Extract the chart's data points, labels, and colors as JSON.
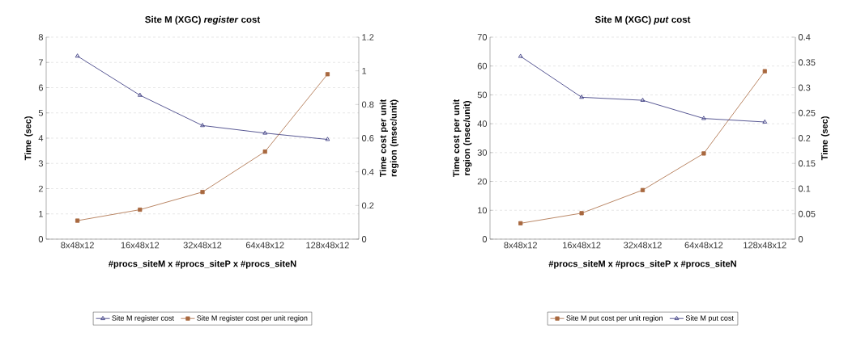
{
  "chart_data": [
    {
      "type": "line",
      "title": "Site M (XGC) *register* cost",
      "categories": [
        "8x48x12",
        "16x48x12",
        "32x48x12",
        "64x48x12",
        "128x48x12"
      ],
      "xlabel": "#procs_siteM x #procs_siteP x #procs_siteN",
      "ylabel": "Time (sec)",
      "y2label": "Time cost per unit region (msec/unit)",
      "ylim": [
        0,
        8
      ],
      "yticks": [
        0,
        1,
        2,
        3,
        4,
        5,
        6,
        7,
        8
      ],
      "y2lim": [
        0,
        1.2
      ],
      "y2ticks": [
        0,
        0.2,
        0.4,
        0.6,
        0.8,
        1,
        1.2
      ],
      "grid": "y",
      "legend": "bottom",
      "line_style": "solid",
      "series": [
        {
          "name": "Site M register cost",
          "color": "#2e2e78",
          "marker": "triangle",
          "values": [
            7.25,
            5.7,
            4.5,
            4.2,
            3.95
          ]
        },
        {
          "name": "Site M register cost per unit region",
          "color": "#a8683f",
          "marker": "square",
          "axis": "y2",
          "values": [
            0.11,
            0.175,
            0.28,
            0.52,
            0.98
          ]
        }
      ]
    },
    {
      "type": "line",
      "title": "Site M (XGC) *put* cost",
      "categories": [
        "8x48x12",
        "16x48x12",
        "32x48x12",
        "64x48x12",
        "128x48x12"
      ],
      "xlabel": "#procs_siteM x #procs_siteP x #procs_siteN",
      "ylabel": "Time cost per unit region (nsec/unit)",
      "y2label": "Time (sec)",
      "ylim": [
        0,
        70
      ],
      "yticks": [
        0,
        10,
        20,
        30,
        40,
        50,
        60,
        70
      ],
      "y2lim": [
        0,
        0.4
      ],
      "y2ticks": [
        0,
        0.05,
        0.1,
        0.15,
        0.2,
        0.25,
        0.3,
        0.35,
        0.4
      ],
      "grid": "y",
      "legend": "bottom",
      "line_style": "solid",
      "series": [
        {
          "name": "Site M put cost per unit region",
          "color": "#a8683f",
          "marker": "square",
          "values": [
            5.5,
            9,
            17,
            29.7,
            58.2
          ]
        },
        {
          "name": "Site M put cost",
          "color": "#2e2e78",
          "marker": "triangle",
          "axis": "y2",
          "values": [
            0.362,
            0.281,
            0.275,
            0.239,
            0.232
          ]
        }
      ]
    }
  ]
}
